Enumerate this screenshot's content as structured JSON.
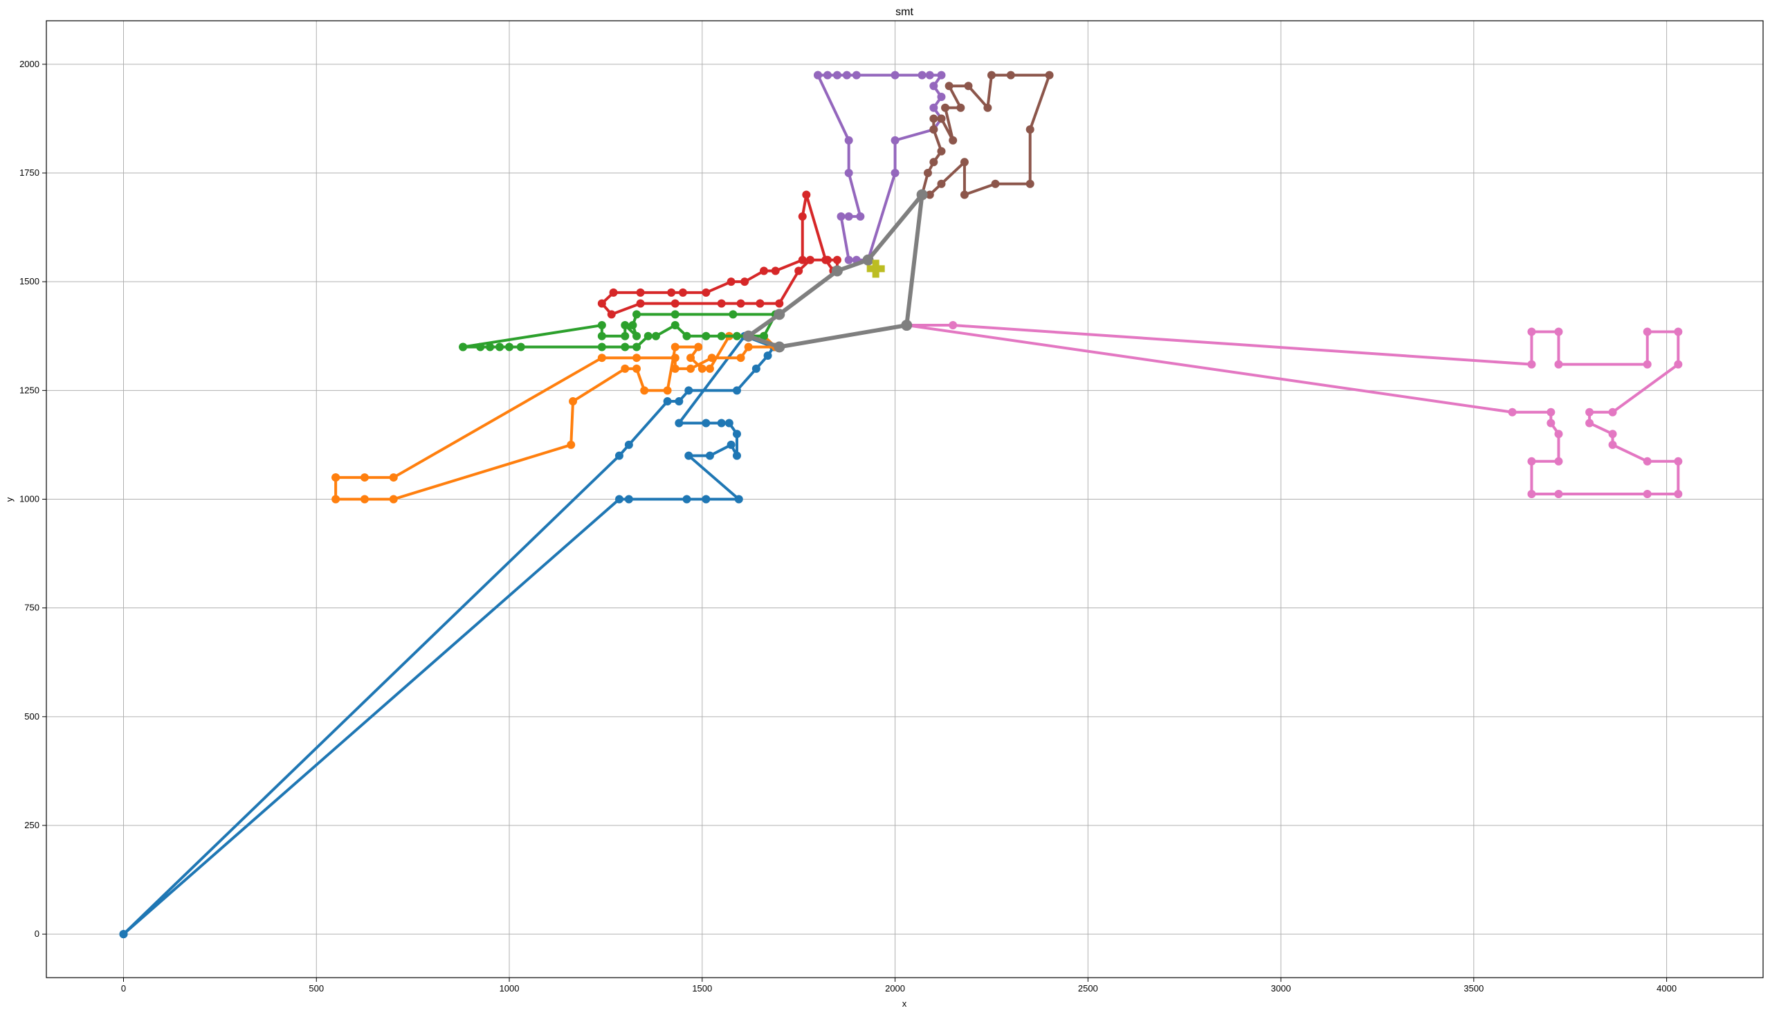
{
  "chart_data": {
    "type": "line",
    "title": "smt",
    "xlabel": "x",
    "ylabel": "y",
    "xlim": [
      -200,
      4250
    ],
    "ylim": [
      -100,
      2100
    ],
    "xticks": [
      0,
      500,
      1000,
      1500,
      2000,
      2500,
      3000,
      3500,
      4000
    ],
    "yticks": [
      0,
      250,
      500,
      750,
      1000,
      1250,
      1500,
      1750,
      2000
    ],
    "grid": true,
    "series": [
      {
        "color": "#1f77b4",
        "points": [
          [
            0,
            0
          ],
          [
            1285,
            1100
          ],
          [
            1310,
            1125
          ],
          [
            1410,
            1225
          ],
          [
            1440,
            1225
          ],
          [
            1465,
            1250
          ],
          [
            1590,
            1250
          ],
          [
            1640,
            1300
          ],
          [
            1670,
            1330
          ],
          [
            1685,
            1350
          ],
          [
            1610,
            1375
          ],
          [
            1440,
            1175
          ],
          [
            1510,
            1175
          ],
          [
            1550,
            1175
          ],
          [
            1570,
            1175
          ],
          [
            1590,
            1150
          ],
          [
            1590,
            1100
          ],
          [
            1575,
            1125
          ],
          [
            1520,
            1100
          ],
          [
            1465,
            1100
          ],
          [
            1595,
            1000
          ],
          [
            1510,
            1000
          ],
          [
            1460,
            1000
          ],
          [
            1310,
            1000
          ],
          [
            1285,
            1000
          ],
          [
            0,
            0
          ]
        ]
      },
      {
        "color": "#ff7f0e",
        "points": [
          [
            550,
            1050
          ],
          [
            625,
            1050
          ],
          [
            700,
            1050
          ],
          [
            1240,
            1325
          ],
          [
            1330,
            1325
          ],
          [
            1430,
            1325
          ],
          [
            1430,
            1300
          ],
          [
            1470,
            1300
          ],
          [
            1525,
            1325
          ],
          [
            1600,
            1325
          ],
          [
            1620,
            1350
          ],
          [
            1690,
            1350
          ],
          [
            1660,
            1375
          ],
          [
            1620,
            1375
          ],
          [
            1570,
            1375
          ],
          [
            1520,
            1300
          ],
          [
            1500,
            1300
          ],
          [
            1470,
            1325
          ],
          [
            1490,
            1350
          ],
          [
            1430,
            1350
          ],
          [
            1410,
            1250
          ],
          [
            1350,
            1250
          ],
          [
            1330,
            1300
          ],
          [
            1300,
            1300
          ],
          [
            1165,
            1225
          ],
          [
            1160,
            1125
          ],
          [
            700,
            1000
          ],
          [
            625,
            1000
          ],
          [
            550,
            1000
          ],
          [
            550,
            1050
          ]
        ]
      },
      {
        "color": "#2ca02c",
        "points": [
          [
            880,
            1350
          ],
          [
            925,
            1350
          ],
          [
            950,
            1350
          ],
          [
            975,
            1350
          ],
          [
            1000,
            1350
          ],
          [
            1030,
            1350
          ],
          [
            1240,
            1350
          ],
          [
            1300,
            1350
          ],
          [
            1330,
            1350
          ],
          [
            1360,
            1375
          ],
          [
            1380,
            1375
          ],
          [
            1430,
            1400
          ],
          [
            1460,
            1375
          ],
          [
            1510,
            1375
          ],
          [
            1550,
            1375
          ],
          [
            1590,
            1375
          ],
          [
            1660,
            1375
          ],
          [
            1690,
            1425
          ],
          [
            1580,
            1425
          ],
          [
            1430,
            1425
          ],
          [
            1330,
            1425
          ],
          [
            1320,
            1400
          ],
          [
            1330,
            1375
          ],
          [
            1300,
            1400
          ],
          [
            1300,
            1375
          ],
          [
            1240,
            1375
          ],
          [
            1240,
            1400
          ],
          [
            880,
            1350
          ]
        ]
      },
      {
        "color": "#d62728",
        "points": [
          [
            1650,
            1450
          ],
          [
            1600,
            1450
          ],
          [
            1550,
            1450
          ],
          [
            1430,
            1450
          ],
          [
            1340,
            1450
          ],
          [
            1265,
            1425
          ],
          [
            1240,
            1450
          ],
          [
            1270,
            1475
          ],
          [
            1340,
            1475
          ],
          [
            1420,
            1475
          ],
          [
            1450,
            1475
          ],
          [
            1510,
            1475
          ],
          [
            1575,
            1500
          ],
          [
            1610,
            1500
          ],
          [
            1660,
            1525
          ],
          [
            1690,
            1525
          ],
          [
            1760,
            1550
          ],
          [
            1760,
            1650
          ],
          [
            1770,
            1700
          ],
          [
            1820,
            1550
          ],
          [
            1840,
            1525
          ],
          [
            1850,
            1525
          ],
          [
            1850,
            1550
          ],
          [
            1825,
            1550
          ],
          [
            1780,
            1550
          ],
          [
            1750,
            1525
          ],
          [
            1700,
            1450
          ],
          [
            1650,
            1450
          ]
        ]
      },
      {
        "color": "#9467bd",
        "points": [
          [
            1800,
            1975
          ],
          [
            1825,
            1975
          ],
          [
            1850,
            1975
          ],
          [
            1875,
            1975
          ],
          [
            1900,
            1975
          ],
          [
            2000,
            1975
          ],
          [
            2070,
            1975
          ],
          [
            2090,
            1975
          ],
          [
            2120,
            1975
          ],
          [
            2100,
            1950
          ],
          [
            2120,
            1925
          ],
          [
            2100,
            1900
          ],
          [
            2120,
            1875
          ],
          [
            2100,
            1850
          ],
          [
            2000,
            1825
          ],
          [
            2000,
            1750
          ],
          [
            1930,
            1550
          ],
          [
            1900,
            1550
          ],
          [
            1880,
            1550
          ],
          [
            1860,
            1650
          ],
          [
            1880,
            1650
          ],
          [
            1910,
            1650
          ],
          [
            1880,
            1750
          ],
          [
            1880,
            1825
          ],
          [
            1800,
            1975
          ]
        ]
      },
      {
        "color": "#8c564b",
        "points": [
          [
            2070,
            1700
          ],
          [
            2085,
            1750
          ],
          [
            2100,
            1775
          ],
          [
            2120,
            1800
          ],
          [
            2100,
            1850
          ],
          [
            2100,
            1875
          ],
          [
            2120,
            1875
          ],
          [
            2150,
            1825
          ],
          [
            2130,
            1900
          ],
          [
            2170,
            1900
          ],
          [
            2140,
            1950
          ],
          [
            2190,
            1950
          ],
          [
            2240,
            1900
          ],
          [
            2250,
            1975
          ],
          [
            2300,
            1975
          ],
          [
            2400,
            1975
          ],
          [
            2350,
            1850
          ],
          [
            2350,
            1725
          ],
          [
            2260,
            1725
          ],
          [
            2180,
            1700
          ],
          [
            2180,
            1775
          ],
          [
            2120,
            1725
          ],
          [
            2090,
            1700
          ],
          [
            2070,
            1700
          ]
        ]
      },
      {
        "color": "#e377c2",
        "points": [
          [
            2030,
            1400
          ],
          [
            2150,
            1400
          ],
          [
            3650,
            1310
          ],
          [
            3650,
            1385
          ],
          [
            3720,
            1385
          ],
          [
            3720,
            1310
          ],
          [
            3950,
            1310
          ],
          [
            3950,
            1385
          ],
          [
            4030,
            1385
          ],
          [
            4030,
            1310
          ],
          [
            3860,
            1200
          ],
          [
            3800,
            1200
          ],
          [
            3800,
            1175
          ],
          [
            3860,
            1150
          ],
          [
            3860,
            1125
          ],
          [
            3950,
            1087
          ],
          [
            4030,
            1087
          ],
          [
            4030,
            1012
          ],
          [
            3950,
            1012
          ],
          [
            3720,
            1012
          ],
          [
            3650,
            1012
          ],
          [
            3650,
            1087
          ],
          [
            3720,
            1087
          ],
          [
            3720,
            1150
          ],
          [
            3700,
            1175
          ],
          [
            3700,
            1200
          ],
          [
            3600,
            1200
          ],
          [
            2030,
            1400
          ]
        ]
      },
      {
        "color": "#7f7f7f",
        "points": [
          [
            1620,
            1375
          ],
          [
            1700,
            1425
          ],
          [
            1850,
            1525
          ],
          [
            1930,
            1550
          ],
          [
            2070,
            1700
          ],
          [
            2030,
            1400
          ],
          [
            1700,
            1350
          ],
          [
            1620,
            1375
          ]
        ]
      }
    ],
    "depot": {
      "x": 1950,
      "y": 1530,
      "color": "#bcbd22"
    }
  }
}
